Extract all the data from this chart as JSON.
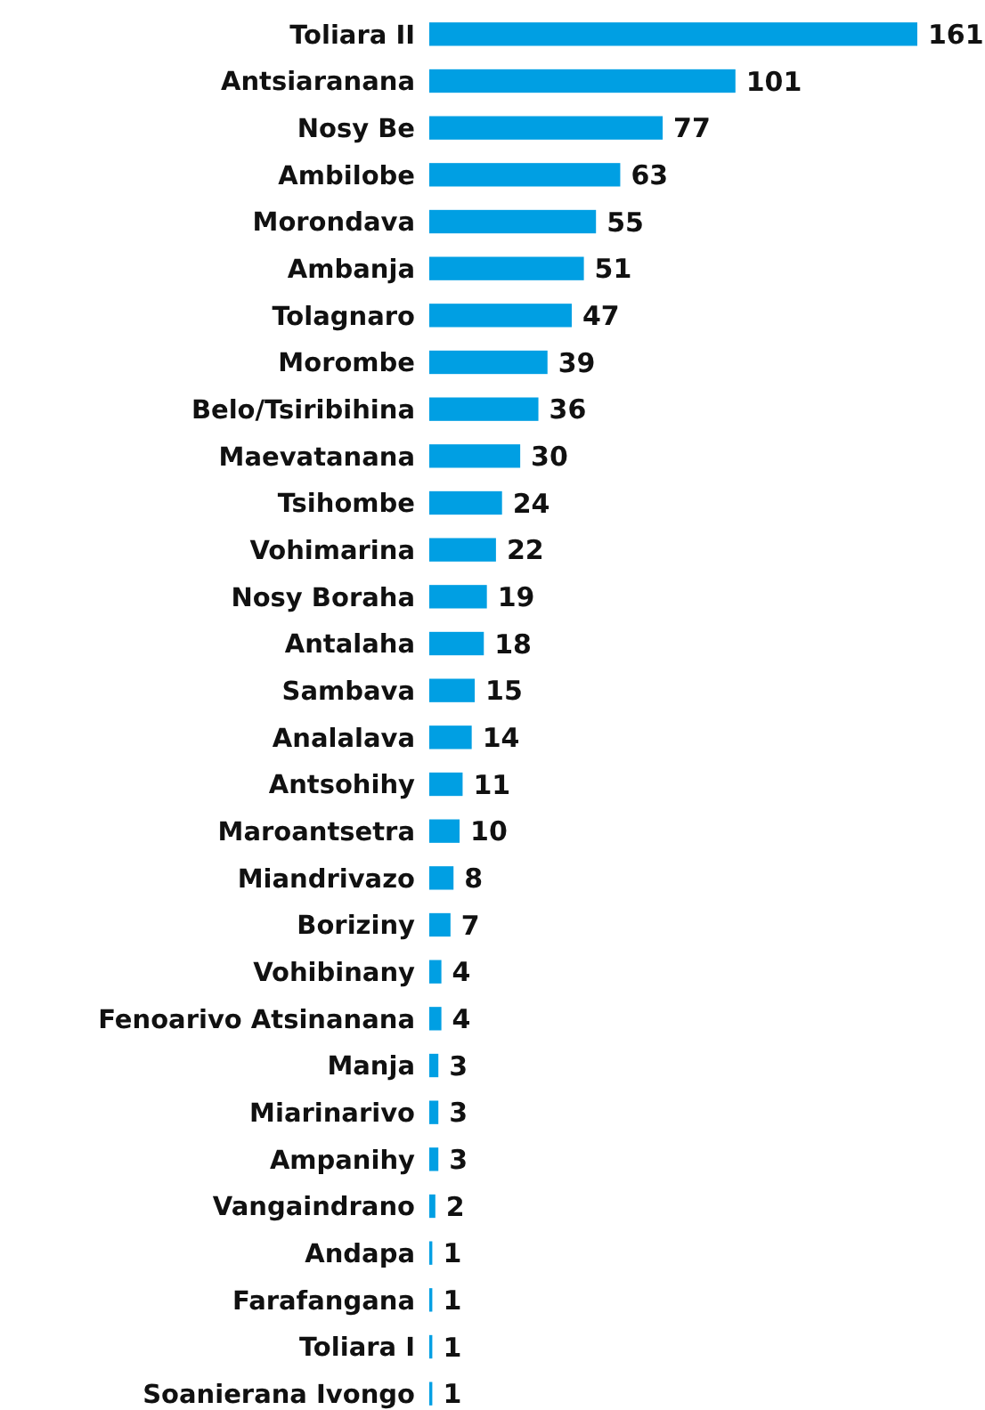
{
  "chart_data": {
    "type": "bar",
    "orientation": "horizontal",
    "data_labels": true,
    "color": "#009fe3",
    "categories": [
      "Toliara II",
      "Antsiaranana",
      "Nosy Be",
      "Ambilobe",
      "Morondava",
      "Ambanja",
      "Tolagnaro",
      "Morombe",
      "Belo/Tsiribihina",
      "Maevatanana",
      "Tsihombe",
      "Vohimarina",
      "Nosy Boraha",
      "Antalaha",
      "Sambava",
      "Analalava",
      "Antsohihy",
      "Maroantsetra",
      "Miandrivazo",
      "Boriziny",
      "Vohibinany",
      "Fenoarivo Atsinanana",
      "Manja",
      "Miarinarivo",
      "Ampanihy",
      "Vangaindrano",
      "Andapa",
      "Farafangana",
      "Toliara I",
      "Soanierana Ivongo"
    ],
    "values": [
      161,
      101,
      77,
      63,
      55,
      51,
      47,
      39,
      36,
      30,
      24,
      22,
      19,
      18,
      15,
      14,
      11,
      10,
      8,
      7,
      4,
      4,
      3,
      3,
      3,
      2,
      1,
      1,
      1,
      1
    ]
  }
}
